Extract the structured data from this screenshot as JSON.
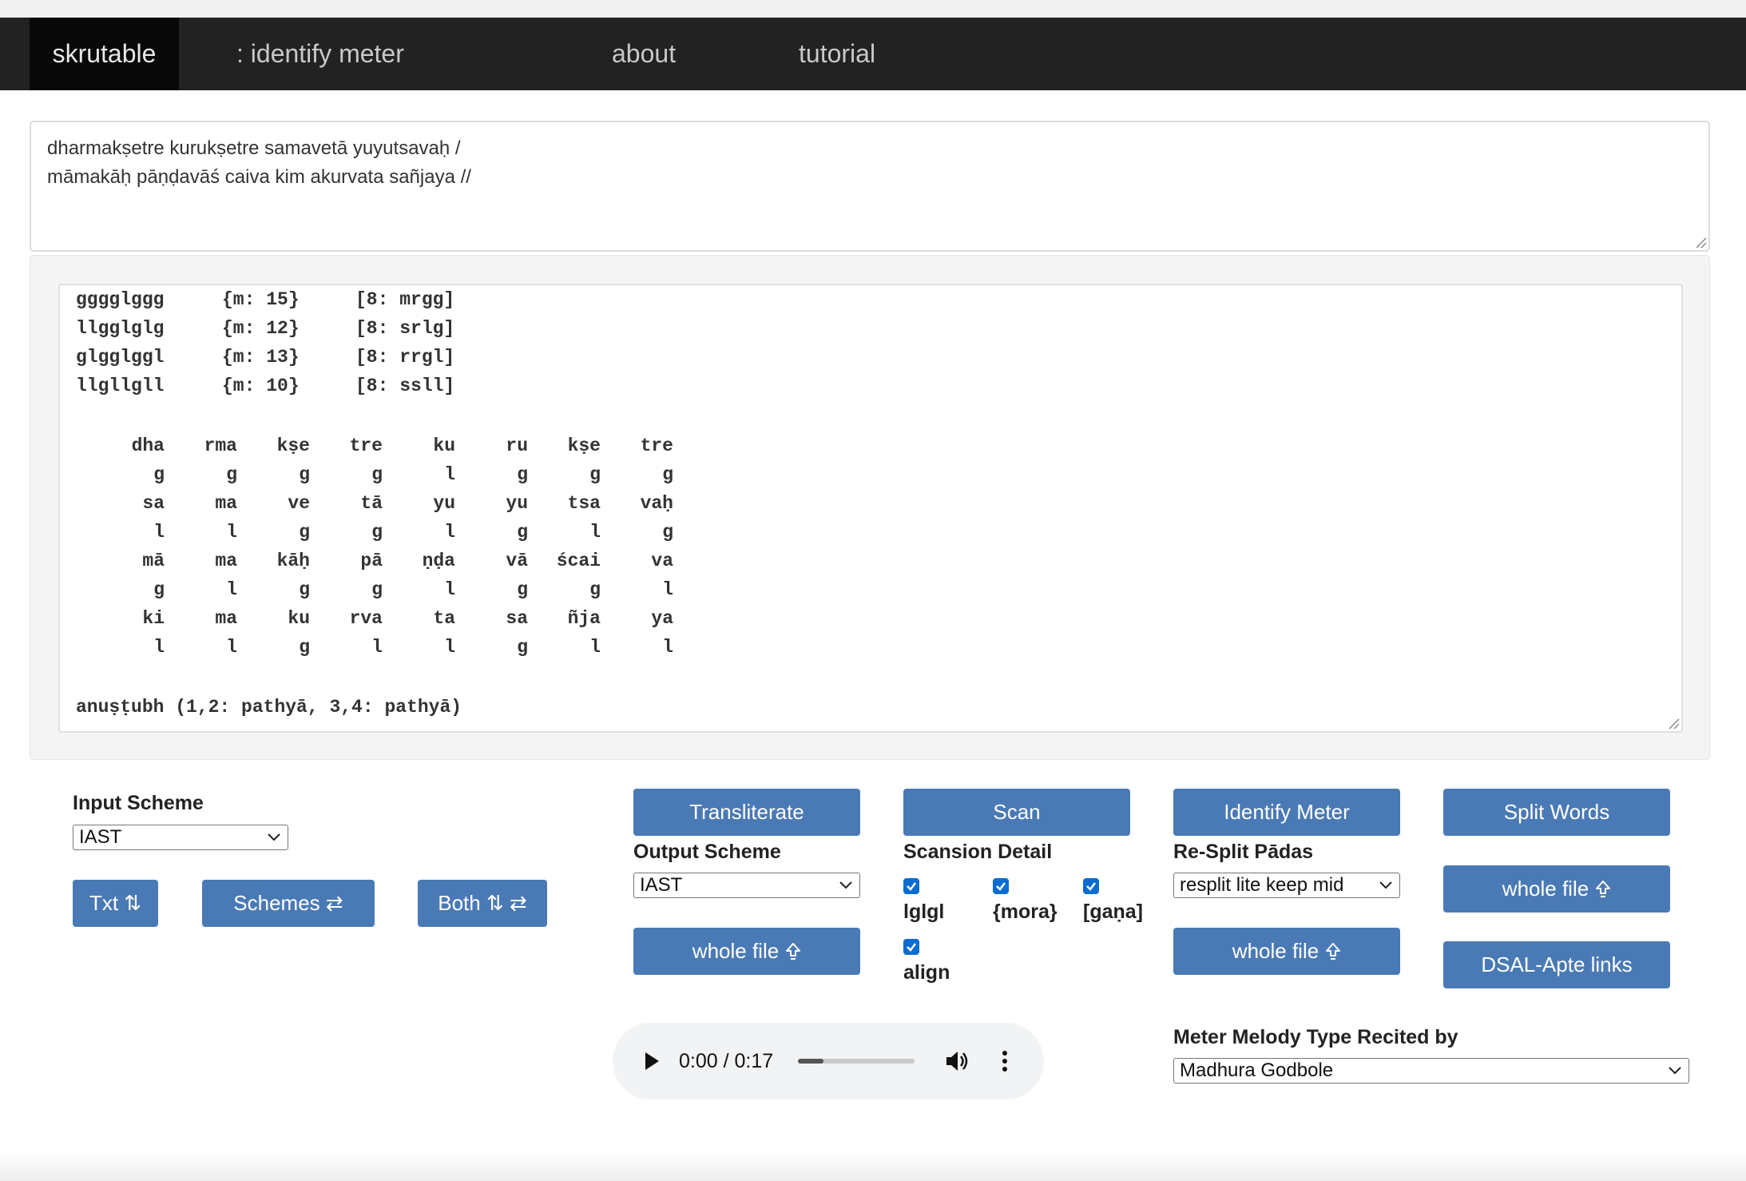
{
  "nav": {
    "brand": "skrutable",
    "items": [
      ": identify meter",
      "about",
      "tutorial"
    ]
  },
  "input_text": {
    "lines": [
      "dharmakṣetre kurukṣetre samavetā yuyutsavaḥ /",
      "māmakāḥ pāṇḍavāś caiva kim akurvata sañjaya //"
    ]
  },
  "output": {
    "summary_rows": [
      {
        "pattern": "gggglggg",
        "mora": "{m: 15}",
        "gana": "[8: mrgg]"
      },
      {
        "pattern": "llgglglg",
        "mora": "{m: 12}",
        "gana": "[8: srlg]"
      },
      {
        "pattern": "glgglggl",
        "mora": "{m: 13}",
        "gana": "[8: rrgl]"
      },
      {
        "pattern": "llgllgll",
        "mora": "{m: 10}",
        "gana": "[8: ssll]"
      }
    ],
    "grid_rows": [
      [
        "dha",
        "rma",
        "kṣe",
        "tre",
        "ku",
        "ru",
        "kṣe",
        "tre"
      ],
      [
        "g",
        "g",
        "g",
        "g",
        "l",
        "g",
        "g",
        "g"
      ],
      [
        "sa",
        "ma",
        "ve",
        "tā",
        "yu",
        "yu",
        "tsa",
        "vaḥ"
      ],
      [
        "l",
        "l",
        "g",
        "g",
        "l",
        "g",
        "l",
        "g"
      ],
      [
        "mā",
        "ma",
        "kāḥ",
        "pā",
        "ṇḍa",
        "vā",
        "ścai",
        "va"
      ],
      [
        "g",
        "l",
        "g",
        "g",
        "l",
        "g",
        "g",
        "l"
      ],
      [
        "ki",
        "ma",
        "ku",
        "rva",
        "ta",
        "sa",
        "ñja",
        "ya"
      ],
      [
        "l",
        "l",
        "g",
        "l",
        "l",
        "g",
        "l",
        "l"
      ]
    ],
    "meter_result": "anuṣṭubh (1,2: pathyā, 3,4: pathyā)"
  },
  "controls": {
    "input_scheme_label": "Input Scheme",
    "input_scheme_value": "IAST",
    "txt_button": "Txt ⇅",
    "schemes_button": "Schemes ⇄",
    "both_button": "Both ⇅ ⇄",
    "transliterate_button": "Transliterate",
    "output_scheme_label": "Output Scheme",
    "output_scheme_value": "IAST",
    "whole_file_label": "whole file",
    "scan_button": "Scan",
    "scansion_detail_label": "Scansion Detail",
    "checkbox_lglgl": "lglgl",
    "checkbox_mora": "{mora}",
    "checkbox_gana": "[gaṇa]",
    "checkbox_align": "align",
    "identify_meter_button": "Identify Meter",
    "resplit_label": "Re-Split Pādas",
    "resplit_value": "resplit lite keep mid",
    "split_words_button": "Split Words",
    "dsal_button": "DSAL-Apte links",
    "melody_label": "Meter Melody Type Recited by",
    "melody_value": "Madhura Godbole"
  },
  "audio": {
    "time": "0:00 / 0:17",
    "progress_fraction": 0.22
  },
  "colors": {
    "navbar": "#222222",
    "brand_bg": "#080808",
    "button": "#4a7ab5",
    "checkbox": "#0b6ccf"
  }
}
